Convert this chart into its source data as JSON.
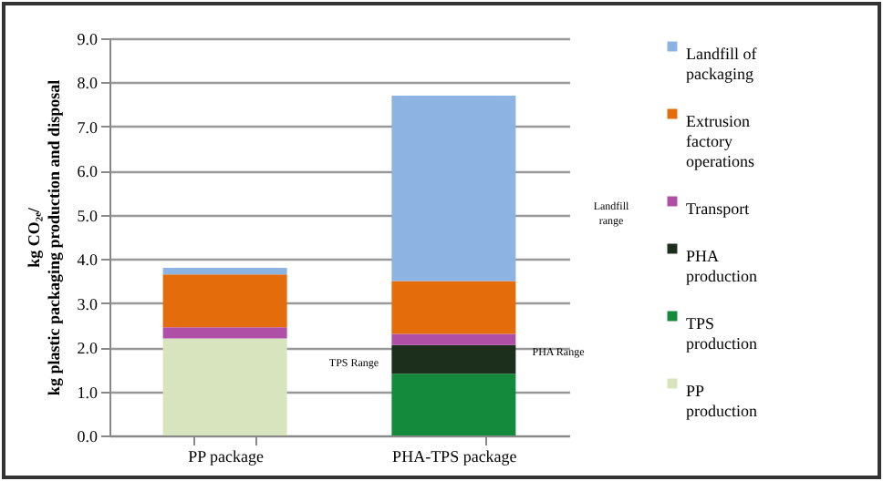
{
  "chart_data": {
    "type": "bar",
    "stacked": true,
    "ylabel": "kg CO₂ₑ/\nkg plastic packaging production and disposal",
    "categories": [
      "PP package",
      "PHA-TPS package"
    ],
    "series": [
      {
        "name": "PP production",
        "color": "#d7e4bd",
        "values": [
          2.2,
          0
        ]
      },
      {
        "name": "TPS production",
        "color": "#138a3c",
        "values": [
          0,
          1.4
        ]
      },
      {
        "name": "PHA production",
        "color": "#1c2e1c",
        "values": [
          0,
          0.65
        ]
      },
      {
        "name": "Transport",
        "color": "#b04fa6",
        "values": [
          0.25,
          0.25
        ]
      },
      {
        "name": "Extrusion factory operations",
        "color": "#e46c0a",
        "values": [
          1.2,
          1.2
        ]
      },
      {
        "name": "Landfill of packaging",
        "color": "#8db3e2",
        "values": [
          0.15,
          4.2
        ]
      }
    ],
    "ylim": [
      0,
      9
    ],
    "yticks": [
      {
        "value": 0,
        "label": "0.0"
      },
      {
        "value": 1,
        "label": "1.0"
      },
      {
        "value": 2,
        "label": "2.0"
      },
      {
        "value": 3,
        "label": "3.0"
      },
      {
        "value": 4,
        "label": "4.0"
      },
      {
        "value": 5,
        "label": "5.0"
      },
      {
        "value": 6,
        "label": "6.0"
      },
      {
        "value": 7,
        "label": "7.0"
      },
      {
        "value": 8,
        "label": "8.0"
      },
      {
        "value": 9,
        "label": "9.0"
      }
    ],
    "grid": "y",
    "legend": "right",
    "marker": "square",
    "annotations": [
      "TPS Range",
      "PHA Range",
      "Landfill range"
    ]
  }
}
